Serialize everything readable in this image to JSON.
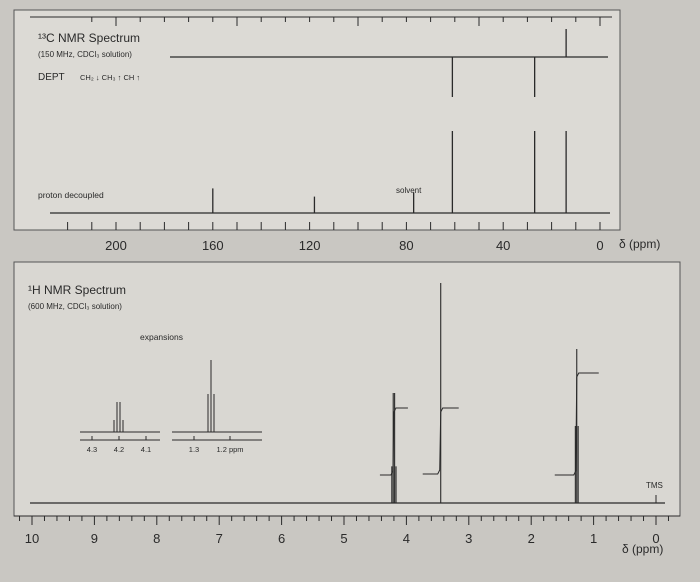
{
  "colors": {
    "background": "#c9c7c2",
    "ink": "#2a2a2a",
    "paper": "#dddbd6"
  },
  "c13": {
    "title": "¹³C NMR Spectrum",
    "subtitle": "(150 MHz, CDCl₃ solution)",
    "dept_label": "DEPT",
    "dept_legend": "CH₂ ↓ CH₃ ↑ CH ↑",
    "decoupled_label": "proton decoupled",
    "solvent_label": "solvent",
    "axis_label": "δ (ppm)",
    "ticks": [
      "200",
      "160",
      "120",
      "80",
      "40",
      "0"
    ]
  },
  "h1": {
    "title": "¹H NMR Spectrum",
    "subtitle": "(600 MHz, CDCl₃ solution)",
    "expansions_label": "expansions",
    "exp1_ticks": [
      "4.3",
      "4.2",
      "4.1"
    ],
    "exp2_ticks": [
      "1.3",
      "1.2 ppm"
    ],
    "tms_label": "TMS",
    "axis_label": "δ (ppm)",
    "ticks": [
      "10",
      "9",
      "8",
      "7",
      "6",
      "5",
      "4",
      "3",
      "2",
      "1",
      "0"
    ]
  },
  "chart_data": [
    {
      "type": "line",
      "subtype": "13C NMR stick spectrum",
      "title": "¹³C NMR Spectrum",
      "xlabel": "δ (ppm)",
      "xlim": [
        220,
        -10
      ],
      "proton_decoupled_peaks": [
        {
          "x": 160,
          "h": 0.3
        },
        {
          "x": 118,
          "h": 0.2
        },
        {
          "x": 77,
          "h": 0.25,
          "note": "solvent"
        },
        {
          "x": 61,
          "h": 1.0
        },
        {
          "x": 27,
          "h": 1.0
        },
        {
          "x": 14,
          "h": 1.0
        }
      ],
      "dept_peaks": [
        {
          "x": 61,
          "dir": "down"
        },
        {
          "x": 27,
          "dir": "down"
        },
        {
          "x": 14,
          "dir": "up"
        }
      ]
    },
    {
      "type": "line",
      "subtype": "1H NMR spectrum",
      "title": "¹H NMR Spectrum",
      "xlabel": "δ (ppm)",
      "xlim": [
        10.5,
        -0.3
      ],
      "peaks": [
        {
          "x": 4.2,
          "h": 0.5,
          "multiplicity": "quartet"
        },
        {
          "x": 3.45,
          "h": 1.0,
          "multiplicity": "singlet"
        },
        {
          "x": 1.27,
          "h": 0.7,
          "multiplicity": "triplet"
        }
      ]
    }
  ]
}
